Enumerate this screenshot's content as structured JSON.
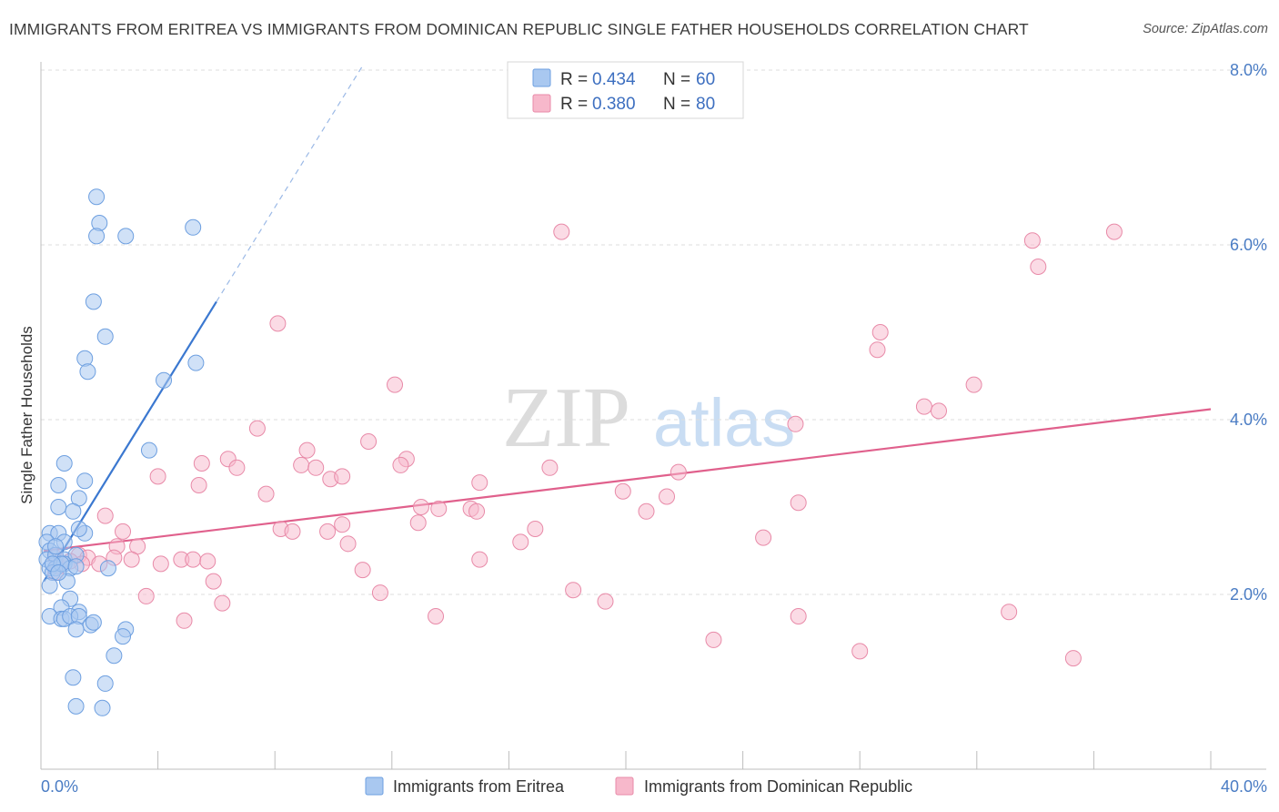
{
  "title": "IMMIGRANTS FROM ERITREA VS IMMIGRANTS FROM DOMINICAN REPUBLIC SINGLE FATHER HOUSEHOLDS CORRELATION CHART",
  "source": "Source: ZipAtlas.com",
  "watermark": {
    "zip": "ZIP",
    "atlas": "atlas"
  },
  "legend": {
    "items": [
      {
        "r_label": "R = ",
        "r_value": "0.434",
        "n_label": "N = ",
        "n_value": "60"
      },
      {
        "r_label": "R = ",
        "r_value": "0.380",
        "n_label": "N = ",
        "n_value": "80"
      }
    ]
  },
  "bottom_legend": [
    "Immigrants from Eritrea",
    "Immigrants from Dominican Republic"
  ],
  "chart_data": {
    "type": "scatter",
    "ylabel": "Single Father Households",
    "xlim": [
      0,
      40
    ],
    "ylim": [
      0,
      8
    ],
    "x_tick_labels": [
      {
        "value": 0,
        "label": "0.0%"
      },
      {
        "value": 40,
        "label": "40.0%"
      }
    ],
    "y_tick_labels": [
      {
        "value": 2,
        "label": "2.0%"
      },
      {
        "value": 4,
        "label": "4.0%"
      },
      {
        "value": 6,
        "label": "6.0%"
      },
      {
        "value": 8,
        "label": "8.0%"
      }
    ],
    "colors": {
      "eritrea_fill": "#a9c8f0",
      "eritrea_stroke": "#6d9fe0",
      "eritrea_line": "#3b78d0",
      "dominican_fill": "#f7b8cb",
      "dominican_stroke": "#e88aa8",
      "dominican_line": "#e0608c"
    },
    "series": [
      {
        "name": "Immigrants from Eritrea",
        "trend": {
          "x0": 0.1,
          "y0": 2.15,
          "x1": 6.0,
          "y1": 5.35,
          "dash_x1": 11.0,
          "dash_y1": 8.05
        },
        "points": [
          [
            1.9,
            6.55
          ],
          [
            2.0,
            6.25
          ],
          [
            1.9,
            6.1
          ],
          [
            2.9,
            6.1
          ],
          [
            5.2,
            6.2
          ],
          [
            1.8,
            5.35
          ],
          [
            2.2,
            4.95
          ],
          [
            1.5,
            4.7
          ],
          [
            1.6,
            4.55
          ],
          [
            4.2,
            4.45
          ],
          [
            5.3,
            4.65
          ],
          [
            3.7,
            3.65
          ],
          [
            0.8,
            3.5
          ],
          [
            0.6,
            3.25
          ],
          [
            1.5,
            3.3
          ],
          [
            1.3,
            3.1
          ],
          [
            0.6,
            3.0
          ],
          [
            1.1,
            2.95
          ],
          [
            0.3,
            2.7
          ],
          [
            0.6,
            2.7
          ],
          [
            1.5,
            2.7
          ],
          [
            1.3,
            2.75
          ],
          [
            0.2,
            2.6
          ],
          [
            0.3,
            2.5
          ],
          [
            0.8,
            2.6
          ],
          [
            0.2,
            2.4
          ],
          [
            0.5,
            2.45
          ],
          [
            0.8,
            2.4
          ],
          [
            1.2,
            2.45
          ],
          [
            0.3,
            2.3
          ],
          [
            0.5,
            2.3
          ],
          [
            0.8,
            2.35
          ],
          [
            1.0,
            2.3
          ],
          [
            0.4,
            2.25
          ],
          [
            2.3,
            2.3
          ],
          [
            0.3,
            2.1
          ],
          [
            0.9,
            2.15
          ],
          [
            1.0,
            1.95
          ],
          [
            0.7,
            1.85
          ],
          [
            1.3,
            1.8
          ],
          [
            0.3,
            1.75
          ],
          [
            0.7,
            1.72
          ],
          [
            0.8,
            1.72
          ],
          [
            1.0,
            1.75
          ],
          [
            1.3,
            1.75
          ],
          [
            1.7,
            1.65
          ],
          [
            1.8,
            1.68
          ],
          [
            1.2,
            1.6
          ],
          [
            2.9,
            1.6
          ],
          [
            2.8,
            1.52
          ],
          [
            2.5,
            1.3
          ],
          [
            1.1,
            1.05
          ],
          [
            2.2,
            0.98
          ],
          [
            1.2,
            0.72
          ],
          [
            2.1,
            0.7
          ],
          [
            0.5,
            2.55
          ],
          [
            0.7,
            2.35
          ],
          [
            1.2,
            2.32
          ],
          [
            0.4,
            2.35
          ],
          [
            0.6,
            2.25
          ]
        ]
      },
      {
        "name": "Immigrants from Dominican Republic",
        "trend": {
          "x0": 0.1,
          "y0": 2.5,
          "x1": 40.0,
          "y1": 4.12
        },
        "points": [
          [
            17.8,
            6.15
          ],
          [
            33.9,
            6.05
          ],
          [
            36.7,
            6.15
          ],
          [
            34.1,
            5.75
          ],
          [
            8.1,
            5.1
          ],
          [
            28.6,
            4.8
          ],
          [
            28.7,
            5.0
          ],
          [
            12.1,
            4.4
          ],
          [
            30.2,
            4.15
          ],
          [
            30.7,
            4.1
          ],
          [
            31.9,
            4.4
          ],
          [
            25.8,
            3.95
          ],
          [
            7.4,
            3.9
          ],
          [
            11.2,
            3.75
          ],
          [
            9.1,
            3.65
          ],
          [
            6.4,
            3.55
          ],
          [
            12.5,
            3.55
          ],
          [
            5.5,
            3.5
          ],
          [
            6.7,
            3.45
          ],
          [
            8.9,
            3.48
          ],
          [
            9.4,
            3.45
          ],
          [
            12.3,
            3.48
          ],
          [
            17.4,
            3.45
          ],
          [
            4.0,
            3.35
          ],
          [
            9.9,
            3.32
          ],
          [
            10.3,
            3.35
          ],
          [
            15.0,
            3.28
          ],
          [
            21.8,
            3.4
          ],
          [
            5.4,
            3.25
          ],
          [
            7.7,
            3.15
          ],
          [
            19.9,
            3.18
          ],
          [
            21.4,
            3.12
          ],
          [
            13.0,
            3.0
          ],
          [
            13.6,
            2.98
          ],
          [
            14.7,
            2.98
          ],
          [
            14.9,
            2.95
          ],
          [
            20.7,
            2.95
          ],
          [
            25.9,
            3.05
          ],
          [
            2.2,
            2.9
          ],
          [
            8.2,
            2.75
          ],
          [
            8.6,
            2.72
          ],
          [
            9.8,
            2.72
          ],
          [
            10.3,
            2.8
          ],
          [
            12.9,
            2.82
          ],
          [
            16.9,
            2.75
          ],
          [
            2.8,
            2.72
          ],
          [
            3.3,
            2.55
          ],
          [
            2.6,
            2.55
          ],
          [
            10.5,
            2.58
          ],
          [
            16.4,
            2.6
          ],
          [
            24.7,
            2.65
          ],
          [
            1.3,
            2.45
          ],
          [
            1.6,
            2.42
          ],
          [
            2.5,
            2.42
          ],
          [
            3.1,
            2.4
          ],
          [
            4.8,
            2.4
          ],
          [
            5.2,
            2.4
          ],
          [
            5.7,
            2.38
          ],
          [
            15.0,
            2.4
          ],
          [
            4.1,
            2.35
          ],
          [
            0.6,
            2.32
          ],
          [
            1.4,
            2.35
          ],
          [
            2.0,
            2.35
          ],
          [
            11.0,
            2.28
          ],
          [
            0.5,
            2.25
          ],
          [
            5.9,
            2.15
          ],
          [
            18.2,
            2.05
          ],
          [
            11.6,
            2.02
          ],
          [
            3.6,
            1.98
          ],
          [
            19.3,
            1.92
          ],
          [
            6.2,
            1.9
          ],
          [
            33.1,
            1.8
          ],
          [
            13.5,
            1.75
          ],
          [
            25.9,
            1.75
          ],
          [
            4.9,
            1.7
          ],
          [
            23.0,
            1.48
          ],
          [
            28.0,
            1.35
          ],
          [
            35.3,
            1.27
          ],
          [
            0.5,
            2.42
          ],
          [
            1.0,
            2.38
          ]
        ]
      }
    ]
  }
}
